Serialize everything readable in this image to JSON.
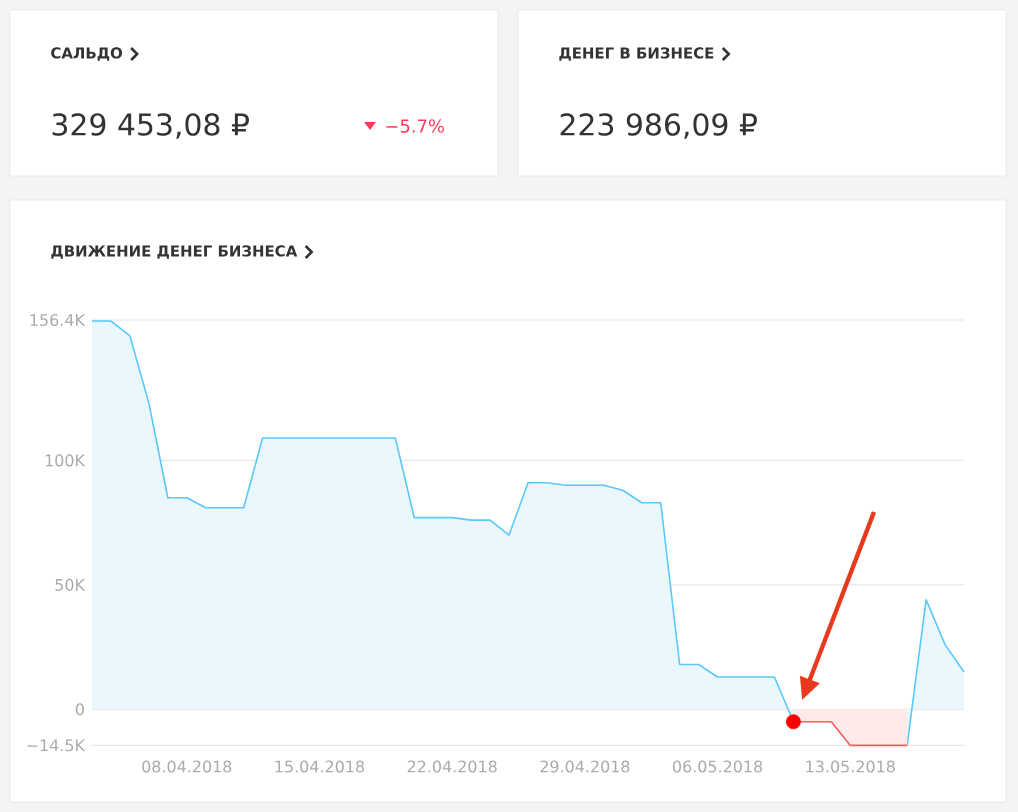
{
  "chart_data": [
    {
      "type": "other",
      "title": "САЛЬДО",
      "annotations": [
        "329 453,08 ₽",
        "−5.7%"
      ]
    },
    {
      "type": "other",
      "title": "ДЕНЕГ В БИЗНЕСЕ",
      "annotations": [
        "223 986,09 ₽"
      ]
    },
    {
      "type": "area",
      "title": "ДВИЖЕНИЕ ДЕНЕГ БИЗНЕСА",
      "x": [
        "2018-04-03",
        "2018-04-04",
        "2018-04-05",
        "2018-04-06",
        "2018-04-07",
        "2018-04-08",
        "2018-04-09",
        "2018-04-10",
        "2018-04-11",
        "2018-04-12",
        "2018-04-13",
        "2018-04-14",
        "2018-04-15",
        "2018-04-16",
        "2018-04-17",
        "2018-04-18",
        "2018-04-19",
        "2018-04-20",
        "2018-04-21",
        "2018-04-22",
        "2018-04-23",
        "2018-04-24",
        "2018-04-25",
        "2018-04-26",
        "2018-04-27",
        "2018-04-28",
        "2018-04-29",
        "2018-04-30",
        "2018-05-01",
        "2018-05-02",
        "2018-05-03",
        "2018-05-04",
        "2018-05-05",
        "2018-05-06",
        "2018-05-07",
        "2018-05-08",
        "2018-05-09",
        "2018-05-10",
        "2018-05-11",
        "2018-05-12",
        "2018-05-13",
        "2018-05-14",
        "2018-05-15",
        "2018-05-16",
        "2018-05-17",
        "2018-05-18",
        "2018-05-19"
      ],
      "series": [
        {
          "color": "#5ac8fa",
          "values": [
            156,
            156,
            150,
            123,
            85,
            85,
            81,
            81,
            81,
            109,
            109,
            109,
            109,
            109,
            109,
            109,
            109,
            77,
            77,
            77,
            76,
            76,
            70,
            91,
            91,
            90,
            90,
            90,
            88,
            83,
            83,
            18,
            18,
            13,
            13,
            13,
            13,
            -5,
            null,
            null,
            null,
            null,
            null,
            -14.5,
            44,
            26,
            15
          ]
        },
        {
          "color": "#ff5a5a",
          "x": [
            "2018-05-10",
            "2018-05-11",
            "2018-05-12",
            "2018-05-13",
            "2018-05-14",
            "2018-05-15",
            "2018-05-16"
          ],
          "values": [
            -5,
            -5,
            -5,
            -14.5,
            -14.5,
            -14.5,
            -14.5
          ]
        },
        {
          "type": "scatter",
          "color": "#ff0000",
          "marker": "circle",
          "x": [
            "2018-05-10"
          ],
          "values": [
            -5
          ]
        }
      ],
      "xlim": [
        "2018-04-03",
        "2018-05-19"
      ],
      "xticks": [
        {
          "value": "2018-04-08",
          "label": "08.04.2018"
        },
        {
          "value": "2018-04-15",
          "label": "15.04.2018"
        },
        {
          "value": "2018-04-22",
          "label": "22.04.2018"
        },
        {
          "value": "2018-04-29",
          "label": "29.04.2018"
        },
        {
          "value": "2018-05-06",
          "label": "06.05.2018"
        },
        {
          "value": "2018-05-13",
          "label": "13.05.2018"
        }
      ],
      "ylim": [
        -14.5,
        156.4
      ],
      "yticks": [
        {
          "value": -14.5,
          "label": "−14.5K"
        },
        0,
        {
          "value": 50,
          "label": "50K"
        },
        {
          "value": 100,
          "label": "100K"
        },
        {
          "value": 156.4,
          "label": "156.4K"
        }
      ],
      "grid": "y"
    }
  ]
}
